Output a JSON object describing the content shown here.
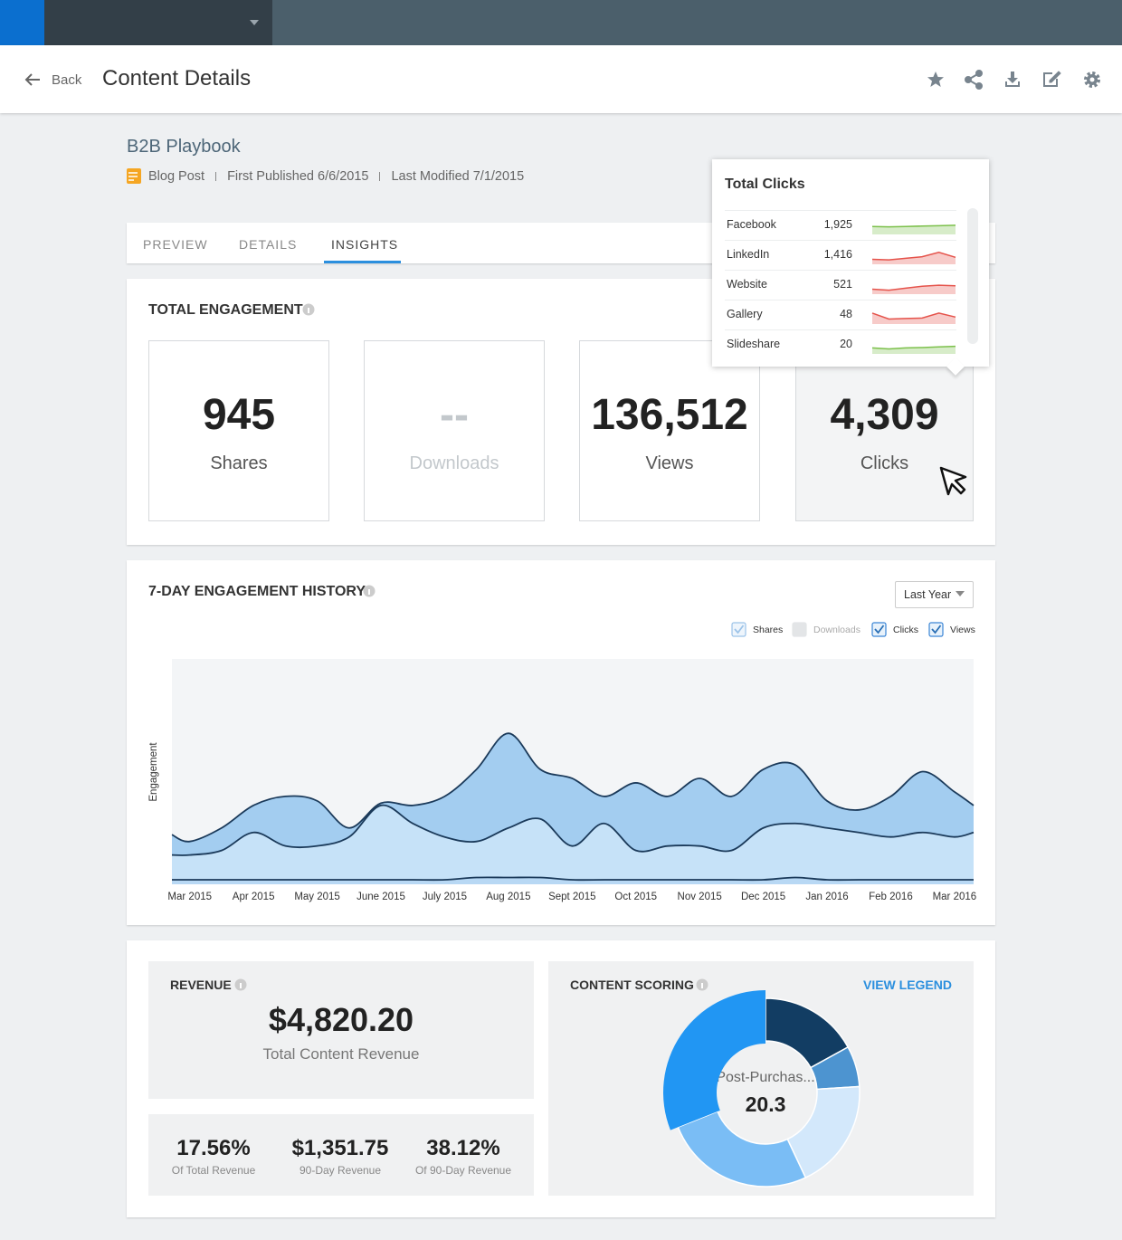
{
  "header": {
    "back": "Back",
    "title": "Content Details"
  },
  "content": {
    "title": "B2B Playbook",
    "type": "Blog Post",
    "first_published": "First Published 6/6/2015",
    "last_modified": "Last Modified 7/1/2015"
  },
  "tabs": {
    "items": [
      "PREVIEW",
      "DETAILS",
      "INSIGHTS"
    ],
    "active": 2
  },
  "engagement": {
    "title": "TOTAL ENGAGEMENT",
    "metrics": [
      {
        "value": 945,
        "label": "Shares"
      },
      {
        "value": "--",
        "label": "Downloads",
        "disabled": true
      },
      {
        "value": "136,512",
        "label": "Views"
      },
      {
        "value": "4,309",
        "label": "Clicks",
        "hover": true
      }
    ]
  },
  "tooltip": {
    "title": "Total Clicks",
    "rows": [
      {
        "name": "Facebook",
        "value": "1,925",
        "color": "#7cc04b",
        "trend": [
          40,
          38,
          40,
          42,
          44,
          46
        ]
      },
      {
        "name": "LinkedIn",
        "value": "1,416",
        "color": "#e5534b",
        "trend": [
          25,
          22,
          30,
          38,
          60,
          35
        ]
      },
      {
        "name": "Website",
        "value": "521",
        "color": "#e5534b",
        "trend": [
          25,
          20,
          30,
          40,
          45,
          42
        ]
      },
      {
        "name": "Gallery",
        "value": "48",
        "color": "#e5534b",
        "trend": [
          55,
          25,
          28,
          30,
          55,
          35
        ]
      },
      {
        "name": "Slideshare",
        "value": "20",
        "color": "#7cc04b",
        "trend": [
          30,
          25,
          30,
          32,
          35,
          38
        ]
      }
    ]
  },
  "chart_data": [
    {
      "type": "area",
      "title": "7-DAY ENGAGEMENT HISTORY",
      "ylabel": "Engagement",
      "range_select": "Last Year",
      "x": [
        -0.28,
        0,
        0.5,
        1,
        1.5,
        2,
        2.5,
        3,
        3.5,
        4,
        4.5,
        5,
        5.5,
        6,
        6.5,
        7,
        7.5,
        8,
        8.5,
        9,
        9.5,
        10,
        10.5,
        11,
        11.5,
        12,
        12.3
      ],
      "xlim": [
        -0.28,
        12.3
      ],
      "xticks": [
        {
          "value": 0,
          "label": "Mar 2015"
        },
        {
          "value": 1,
          "label": "Apr 2015"
        },
        {
          "value": 2,
          "label": "May 2015"
        },
        {
          "value": 3,
          "label": "June 2015"
        },
        {
          "value": 4,
          "label": "July 2015"
        },
        {
          "value": 5,
          "label": "Aug 2015"
        },
        {
          "value": 6,
          "label": "Sept 2015"
        },
        {
          "value": 7,
          "label": "Oct 2015"
        },
        {
          "value": 8,
          "label": "Nov 2015"
        },
        {
          "value": 9,
          "label": "Dec 2015"
        },
        {
          "value": 10,
          "label": "Jan 2016"
        },
        {
          "value": 11,
          "label": "Feb 2016"
        },
        {
          "value": 12,
          "label": "Mar 2016"
        }
      ],
      "ylim": [
        0,
        100
      ],
      "line_color": "#1b3a5a",
      "series": [
        {
          "name": "Views",
          "color": "#a3cdf0",
          "checked": true,
          "values": [
            22,
            19,
            25,
            35,
            39,
            37,
            25,
            36,
            35,
            39,
            51,
            67,
            51,
            47,
            39,
            45,
            39,
            47,
            39,
            51,
            53,
            37,
            33,
            39,
            50,
            41,
            35
          ]
        },
        {
          "name": "Clicks",
          "color": "#c6e2f8",
          "checked": true,
          "values": [
            13,
            13,
            15,
            23,
            17,
            17,
            21,
            35,
            27,
            21,
            19,
            25,
            29,
            17,
            27,
            15,
            17,
            17,
            15,
            25,
            27,
            25,
            23,
            21,
            23,
            21,
            23
          ]
        },
        {
          "name": "Downloads",
          "color": "#e3e5e7",
          "checked": false,
          "values": [
            null,
            null,
            null,
            null,
            null,
            null,
            null,
            null,
            null,
            null,
            null,
            null,
            null,
            null,
            null,
            null,
            null,
            null,
            null,
            null,
            null,
            null,
            null,
            null,
            null,
            null,
            null
          ]
        },
        {
          "name": "Shares",
          "color": "#b8d8f4",
          "checked": true,
          "values": [
            2,
            2,
            2,
            2,
            2,
            2,
            2,
            2,
            2,
            2,
            3,
            3,
            3,
            2,
            2,
            2,
            2,
            2,
            2,
            2,
            3,
            2,
            2,
            2,
            2,
            2,
            2
          ]
        }
      ]
    },
    {
      "type": "pie",
      "title": "CONTENT SCORING",
      "link": "VIEW LEGEND",
      "center_label": "Post-Purchas...",
      "center_value": 20.3,
      "values": [
        17,
        7,
        19,
        26,
        31
      ],
      "colors": [
        "#123d63",
        "#4d94d0",
        "#d3e8fb",
        "#7abdf5",
        "#2196f3"
      ],
      "highlight": 4
    }
  ],
  "revenue": {
    "title": "REVENUE",
    "total": "$4,820.20",
    "total_label": "Total Content Revenue",
    "stats": [
      {
        "value": "17.56%",
        "label": "Of Total Revenue"
      },
      {
        "value": "$1,351.75",
        "label": "90-Day Revenue"
      },
      {
        "value": "38.12%",
        "label": "Of 90-Day Revenue"
      }
    ]
  }
}
